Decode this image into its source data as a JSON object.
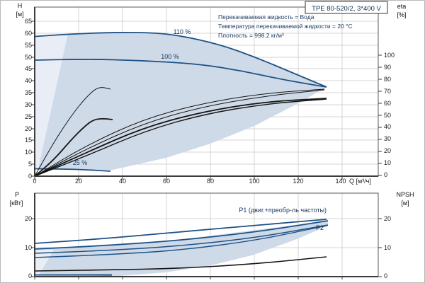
{
  "title_box": {
    "label": "TPE 80-520/2, 3*400 V"
  },
  "info": {
    "line1": "Перекачиваемая жидкость = Вода",
    "line2": "Температура перекачиваемой жидкости = 20 °C",
    "line3": "Плотность = 998.2 кг/м³"
  },
  "top_chart": {
    "y_left": {
      "name": "H",
      "unit": "[м]",
      "ticks": [
        "65",
        "60",
        "55",
        "50",
        "45",
        "40",
        "35",
        "30",
        "25",
        "20",
        "15",
        "10",
        "5",
        "0"
      ]
    },
    "y_right": {
      "name": "eta",
      "unit": "[%]",
      "ticks": [
        "100",
        "90",
        "80",
        "70",
        "60",
        "50",
        "40",
        "30",
        "20",
        "10",
        "0"
      ]
    },
    "x": {
      "ticks": [
        "0",
        "20",
        "40",
        "60",
        "80",
        "100",
        "120",
        "140"
      ],
      "unit": "Q [м³/ч]"
    },
    "curve_labels": {
      "s110": "110 %",
      "s100": "100 %",
      "s25": "25 %"
    }
  },
  "bottom_chart": {
    "y_left": {
      "name": "P",
      "unit": "[кВт]",
      "ticks": [
        "20",
        "10",
        "0"
      ]
    },
    "y_right": {
      "name": "NPSH",
      "unit": "[м]",
      "ticks": [
        "20",
        "10",
        "0"
      ]
    },
    "curve_labels": {
      "p1": "P1 (двиг.+преобр-ль частоты)",
      "p2": "P2"
    }
  },
  "colors": {
    "curve_blue": "#1d5186",
    "curve_black": "#141414",
    "navy_text": "#17365d",
    "shade_main": "#cfdae8",
    "shade_light": "#e9eef6",
    "grid": "#c9c9c9",
    "axis": "#3c3c3c"
  },
  "chart_data": [
    {
      "id": "top",
      "type": "line",
      "title": "QH pump curves with efficiency curves",
      "xlabel": "Q [м³/ч]",
      "ylabel_left": "H [м]",
      "ylabel_right": "eta [%]",
      "xlim": [
        0,
        157
      ],
      "ylim_left": [
        0,
        71
      ],
      "ylim_right": [
        0,
        100
      ],
      "grid": true,
      "areas": [
        {
          "name": "operating-envelope",
          "fill": "#cfdae8",
          "px": [
            [
              48,
              50.5
            ],
            [
              120,
              45.8
            ],
            [
              200,
              44.3
            ],
            [
              250,
              48.5
            ],
            [
              310,
              62
            ],
            [
              360,
              80
            ],
            [
              410,
              101
            ],
            [
              460,
              122
            ],
            [
              420,
              145
            ],
            [
              358,
              177
            ],
            [
              296,
              202
            ],
            [
              234,
              222
            ],
            [
              172,
              236
            ],
            [
              156,
              239.5
            ],
            [
              110,
              238.3
            ],
            [
              48,
              237.5
            ]
          ]
        },
        {
          "name": "low-flow-wedge",
          "fill": "#e9eef6",
          "px": [
            [
              48,
              237.5
            ],
            [
              48,
              50.5
            ],
            [
              95,
              46
            ],
            [
              53,
              237.5
            ]
          ]
        }
      ],
      "series": [
        {
          "name": "H-curve-110pct",
          "axis": "left",
          "color": "#1d5186",
          "width": 1.8,
          "x": [
            0,
            23,
            49,
            65,
            85,
            101,
            117,
            133
          ],
          "y": [
            58.5,
            60,
            60.5,
            59,
            55,
            50,
            43.5,
            37.5
          ],
          "px": [
            [
              48,
              50.5
            ],
            [
              120,
              45.8
            ],
            [
              200,
              44.3
            ],
            [
              250,
              48.5
            ],
            [
              310,
              62
            ],
            [
              360,
              80
            ],
            [
              410,
              101
            ],
            [
              460,
              122
            ]
          ]
        },
        {
          "name": "H-curve-100pct",
          "axis": "left",
          "color": "#1d5186",
          "width": 1.8,
          "x": [
            0,
            23,
            49,
            75,
            94,
            114,
            133
          ],
          "y": [
            48.7,
            49.1,
            48.5,
            47,
            44.2,
            40.4,
            37.5
          ],
          "px": [
            [
              48,
              84
            ],
            [
              120,
              82.5
            ],
            [
              200,
              84.5
            ],
            [
              280,
              89.5
            ],
            [
              340,
              99
            ],
            [
              400,
              112
            ],
            [
              460,
              122
            ]
          ]
        },
        {
          "name": "H-curve-25pct",
          "axis": "left",
          "color": "#1d5186",
          "width": 1.8,
          "x": [
            0,
            20,
            35
          ],
          "y": [
            3.1,
            2.9,
            2.1
          ],
          "px": [
            [
              48,
              237.5
            ],
            [
              110,
              238.3
            ],
            [
              155,
              241
            ]
          ]
        },
        {
          "name": "eta-curve-thin-a",
          "axis": "right",
          "color": "#141414",
          "width": 1,
          "x": [
            0,
            23,
            49,
            75,
            104,
            132
          ],
          "y": [
            0,
            24,
            46,
            59,
            68,
            71.5
          ],
          "px": [
            [
              48,
              248
            ],
            [
              120,
              205
            ],
            [
              200,
              168
            ],
            [
              280,
              146
            ],
            [
              370,
              131
            ],
            [
              457,
              125
            ]
          ]
        },
        {
          "name": "eta-curve-thin-b",
          "axis": "right",
          "color": "#141414",
          "width": 1,
          "x": [
            0,
            23,
            49,
            75,
            104,
            132
          ],
          "y": [
            0,
            21,
            43,
            57,
            66,
            71
          ],
          "px": [
            [
              48,
              248
            ],
            [
              120,
              210
            ],
            [
              200,
              174
            ],
            [
              280,
              151
            ],
            [
              370,
              135
            ],
            [
              457,
              126
            ]
          ]
        },
        {
          "name": "eta-curve-thick-a",
          "axis": "right",
          "color": "#141414",
          "width": 1.8,
          "x": [
            0,
            23,
            49,
            75,
            104,
            133
          ],
          "y": [
            0,
            18,
            39,
            52,
            61,
            64
          ],
          "px": [
            [
              48,
              248
            ],
            [
              120,
              215
            ],
            [
              200,
              180
            ],
            [
              280,
              158
            ],
            [
              370,
              143
            ],
            [
              460,
              138
            ]
          ]
        },
        {
          "name": "eta-curve-thick-b",
          "axis": "right",
          "color": "#141414",
          "width": 1.4,
          "x": [
            0,
            24,
            50,
            76,
            104,
            133
          ],
          "y": [
            0,
            17,
            37,
            50,
            59,
            63.5
          ],
          "px": [
            [
              48,
              248
            ],
            [
              124,
              218
            ],
            [
              204,
              184
            ],
            [
              284,
              161
            ],
            [
              372,
              146
            ],
            [
              460,
              139
            ]
          ]
        },
        {
          "name": "eta-curve-short-thin",
          "axis": "right",
          "color": "#141414",
          "width": 1,
          "x": [
            0,
            9,
            17,
            23,
            29,
            34.5
          ],
          "y": [
            0,
            28,
            51,
            66,
            74,
            71.5
          ],
          "px": [
            [
              48,
              248
            ],
            [
              75,
              200
            ],
            [
              100,
              162
            ],
            [
              120,
              137
            ],
            [
              138,
              121
            ],
            [
              155,
              125
            ]
          ]
        },
        {
          "name": "eta-curve-short-thick",
          "axis": "right",
          "color": "#141414",
          "width": 1.8,
          "x": [
            0,
            9,
            17,
            22.5,
            27,
            31,
            35.5
          ],
          "y": [
            0,
            14,
            31,
            41,
            46,
            47,
            46
          ],
          "px": [
            [
              48,
              248
            ],
            [
              75,
              225
            ],
            [
              100,
              196
            ],
            [
              118,
              178
            ],
            [
              131,
              168
            ],
            [
              145,
              166.5
            ],
            [
              158,
              168
            ]
          ]
        }
      ]
    },
    {
      "id": "bottom",
      "type": "line",
      "title": "Power and NPSH curves",
      "xlabel": "Q [м³/ч]",
      "ylabel_left": "P [кВт]",
      "ylabel_right": "NPSH [м]",
      "xlim": [
        0,
        157
      ],
      "ylim_left": [
        0,
        29
      ],
      "ylim_right": [
        0,
        29
      ],
      "grid": true,
      "areas": [
        {
          "name": "power-envelope",
          "fill": "#cfdae8",
          "px": [
            [
              48,
              351
            ],
            [
              250,
              338
            ],
            [
              462,
              311
            ],
            [
              462,
              318
            ],
            [
              418,
              337
            ],
            [
              356,
              359.5
            ],
            [
              295,
              374.5
            ],
            [
              233,
              384
            ],
            [
              171,
              388.7
            ],
            [
              156,
              389.3
            ],
            [
              48,
              389.5
            ]
          ]
        },
        {
          "name": "low-flow-wedge",
          "fill": "#e9eef6",
          "px": [
            [
              48,
              389.5
            ],
            [
              48,
              352
            ],
            [
              75,
              352
            ],
            [
              53,
              389.5
            ]
          ]
        }
      ],
      "series": [
        {
          "name": "P1-110pct",
          "axis": "left",
          "color": "#1d5186",
          "width": 1.8,
          "x": [
            0,
            49,
            133
          ],
          "y": [
            11.7,
            15.7,
            20.1
          ],
          "px": [
            [
              48,
              343
            ],
            [
              150,
              336
            ],
            [
              250,
              327
            ],
            [
              360,
              317.5
            ],
            [
              460,
              309
            ]
          ]
        },
        {
          "name": "P1-100pct",
          "axis": "left",
          "color": "#1d5186",
          "width": 1.8,
          "x": [
            0,
            49,
            133
          ],
          "y": [
            9.8,
            12.7,
            19.6
          ],
          "px": [
            [
              48,
              351
            ],
            [
              150,
              346
            ],
            [
              250,
              339
            ],
            [
              360,
              327
            ],
            [
              462,
              311
            ]
          ]
        },
        {
          "name": "P2-110pct",
          "axis": "left",
          "color": "#1d5186",
          "width": 1.4,
          "x": [
            0,
            49,
            133
          ],
          "y": [
            8.3,
            10.7,
            18.1
          ],
          "px": [
            [
              48,
              357
            ],
            [
              150,
              353
            ],
            [
              250,
              347
            ],
            [
              360,
              335
            ],
            [
              462,
              317
            ]
          ]
        },
        {
          "name": "P2-100pct",
          "axis": "left",
          "color": "#1d5186",
          "width": 1.4,
          "x": [
            0,
            49,
            133
          ],
          "y": [
            6.8,
            9.3,
            18
          ],
          "px": [
            [
              48,
              363
            ],
            [
              150,
              359
            ],
            [
              250,
              353
            ],
            [
              360,
              339
            ],
            [
              462,
              317.5
            ]
          ]
        },
        {
          "name": "P1-25pct",
          "axis": "left",
          "color": "#1d5186",
          "width": 1.4,
          "x": [
            0,
            35
          ],
          "y": [
            0.8,
            0.85
          ],
          "px": [
            [
              48,
              387.5
            ],
            [
              157,
              387.2
            ]
          ]
        },
        {
          "name": "P2-25pct",
          "axis": "left",
          "color": "#141414",
          "width": 1.4,
          "x": [
            0,
            35
          ],
          "y": [
            0.25,
            0.3
          ],
          "px": [
            [
              48,
              389.6
            ],
            [
              157,
              389.2
            ]
          ]
        },
        {
          "name": "NPSH-curve",
          "axis": "right",
          "color": "#141414",
          "width": 1.6,
          "x": [
            0,
            49,
            101,
            133
          ],
          "y": [
            2,
            2.8,
            4.4,
            6.8
          ],
          "px": [
            [
              48,
              382
            ],
            [
              150,
              380.5
            ],
            [
              250,
              378.5
            ],
            [
              360,
              372
            ],
            [
              460,
              362
            ]
          ]
        }
      ]
    }
  ]
}
